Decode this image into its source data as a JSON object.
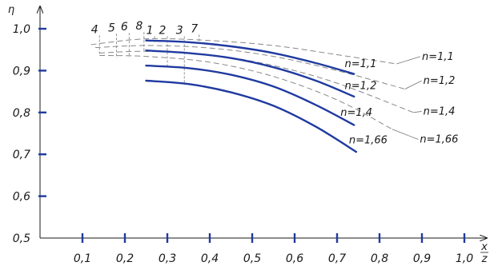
{
  "chart_data": {
    "type": "line",
    "xlabel_top": "x",
    "xlabel_bottom": "z",
    "ylabel": "η",
    "xlim": [
      0.0,
      1.05
    ],
    "ylim": [
      0.5,
      1.0
    ],
    "x_ticks": [
      0.1,
      0.2,
      0.3,
      0.4,
      0.5,
      0.6,
      0.7,
      0.8,
      0.9,
      1.0
    ],
    "x_tick_labels": [
      "0,1",
      "0,2",
      "0,3",
      "0,4",
      "0,5",
      "0,6",
      "0,7",
      "0,8",
      "0,9",
      "1,0"
    ],
    "y_ticks": [
      0.5,
      0.6,
      0.7,
      0.8,
      0.9,
      1.0
    ],
    "y_tick_labels": [
      "0,5",
      "0,6",
      "0,7",
      "0,8",
      "0,9",
      "1,0"
    ],
    "grid": false,
    "tick_color": "#1f3aa0",
    "solid_color": "#1f3aa0",
    "dashed_color": "#888888",
    "solid_series": [
      {
        "name": "n=1,1",
        "x": [
          0.25,
          0.35,
          0.45,
          0.55,
          0.65,
          0.74
        ],
        "y": [
          0.972,
          0.968,
          0.958,
          0.942,
          0.918,
          0.892
        ]
      },
      {
        "name": "n=1,2",
        "x": [
          0.25,
          0.35,
          0.45,
          0.55,
          0.65,
          0.74
        ],
        "y": [
          0.948,
          0.942,
          0.93,
          0.908,
          0.876,
          0.838
        ]
      },
      {
        "name": "n=1,4",
        "x": [
          0.25,
          0.35,
          0.45,
          0.55,
          0.65,
          0.74
        ],
        "y": [
          0.912,
          0.906,
          0.89,
          0.862,
          0.818,
          0.77
        ]
      },
      {
        "name": "n=1,66",
        "x": [
          0.25,
          0.35,
          0.45,
          0.55,
          0.65,
          0.745
        ],
        "y": [
          0.876,
          0.868,
          0.848,
          0.816,
          0.766,
          0.706
        ]
      }
    ],
    "dashed_series": [
      {
        "name": "n=1,1",
        "x": [
          0.12,
          0.25,
          0.4,
          0.55,
          0.7,
          0.84
        ],
        "y": [
          0.962,
          0.976,
          0.972,
          0.96,
          0.938,
          0.916
        ]
      },
      {
        "name": "n=1,2",
        "x": [
          0.13,
          0.25,
          0.4,
          0.55,
          0.7,
          0.86
        ],
        "y": [
          0.955,
          0.96,
          0.954,
          0.934,
          0.9,
          0.856
        ]
      },
      {
        "name": "n=1,4",
        "x": [
          0.14,
          0.25,
          0.4,
          0.55,
          0.7,
          0.88
        ],
        "y": [
          0.942,
          0.946,
          0.938,
          0.912,
          0.87,
          0.8
        ]
      },
      {
        "name": "n=1,66",
        "x": [
          0.14,
          0.25,
          0.4,
          0.55,
          0.7,
          0.83
        ],
        "y": [
          0.936,
          0.934,
          0.92,
          0.886,
          0.83,
          0.76
        ]
      }
    ],
    "lead_lines": [
      {
        "label": "4",
        "x": 0.14,
        "y_top": 0.984,
        "y_bottom": 0.937
      },
      {
        "label": "5",
        "x": 0.18,
        "y_top": 0.988,
        "y_bottom": 0.93
      },
      {
        "label": "6",
        "x": 0.21,
        "y_top": 0.99,
        "y_bottom": 0.932
      },
      {
        "label": "8",
        "x": 0.245,
        "y_top": 0.992,
        "y_bottom": 0.944
      },
      {
        "label": "1",
        "x": 0.27,
        "y_top": 0.982,
        "y_bottom": 0.968
      },
      {
        "label": "2",
        "x": 0.3,
        "y_top": 0.982,
        "y_bottom": 0.906
      },
      {
        "label": "3",
        "x": 0.34,
        "y_top": 0.982,
        "y_bottom": 0.868
      },
      {
        "label": "7",
        "x": 0.375,
        "y_top": 0.986,
        "y_bottom": 0.966
      }
    ],
    "inner_labels": [
      {
        "text": "n=1,1",
        "x": 0.718,
        "y": 0.908
      },
      {
        "text": "n=1,2",
        "x": 0.718,
        "y": 0.856
      },
      {
        "text": "n=1,4",
        "x": 0.708,
        "y": 0.792
      },
      {
        "text": "n=1,66",
        "x": 0.728,
        "y": 0.726
      }
    ],
    "outer_labels": [
      {
        "text": "n=1,1",
        "x": 0.9,
        "y": 0.926
      },
      {
        "text": "n=1,2",
        "x": 0.903,
        "y": 0.868
      },
      {
        "text": "n=1,4",
        "x": 0.903,
        "y": 0.795
      },
      {
        "text": "n=1,66",
        "x": 0.895,
        "y": 0.728
      }
    ]
  }
}
